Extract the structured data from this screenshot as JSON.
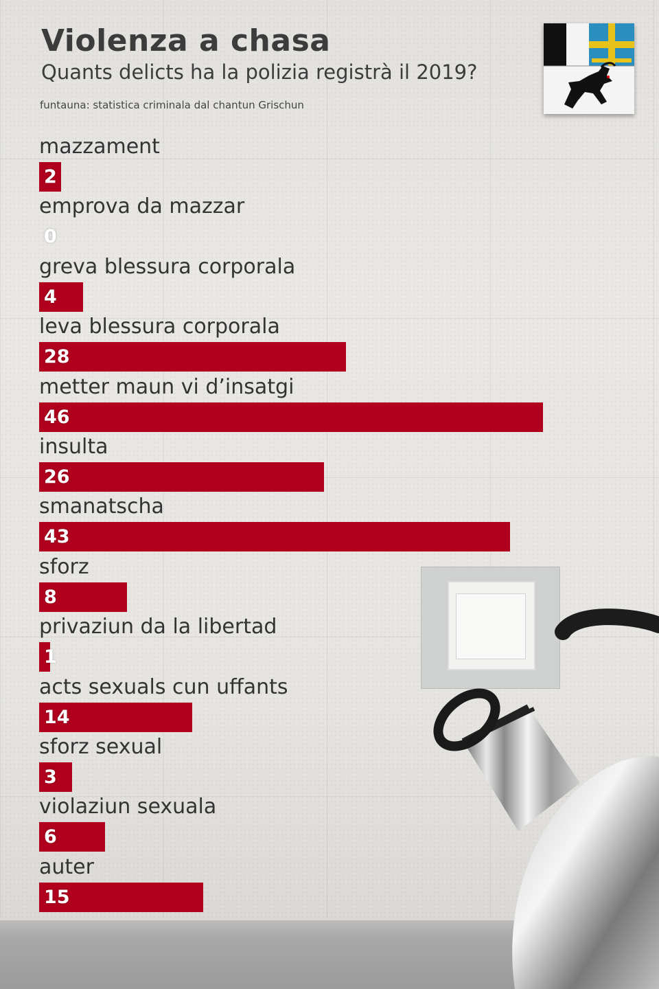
{
  "header": {
    "title": "Violenza a chasa",
    "subtitle": "Quants delicts ha la polizia registrà il 2019?",
    "source": "funtauna: statistica criminala dal chantun Grischun"
  },
  "colors": {
    "bar": "#b0001e",
    "value_text": "#ffffff",
    "label_text": "#333333"
  },
  "icons": {
    "coat_of_arms": "graubuenden-coat-of-arms-icon",
    "decoration": "kettle-and-outlet-image"
  },
  "chart_data": {
    "type": "bar",
    "orientation": "horizontal",
    "title": "Violenza a chasa",
    "subtitle": "Quants delicts ha la polizia registrà il 2019?",
    "xlabel": "",
    "ylabel": "",
    "xlim": [
      0,
      46
    ],
    "grid": false,
    "legend": "none",
    "categories": [
      "mazzament",
      "emprova da mazzar",
      "greva blessura corporala",
      "leva blessura corporala",
      "metter maun vi d’insatgi",
      "insulta",
      "smanatscha",
      "sforz",
      "privaziun da la libertad",
      "acts sexuals cun uffants",
      "sforz sexual",
      "violaziun sexuala",
      "auter"
    ],
    "values": [
      2,
      0,
      4,
      28,
      46,
      26,
      43,
      8,
      1,
      14,
      3,
      6,
      15
    ]
  }
}
